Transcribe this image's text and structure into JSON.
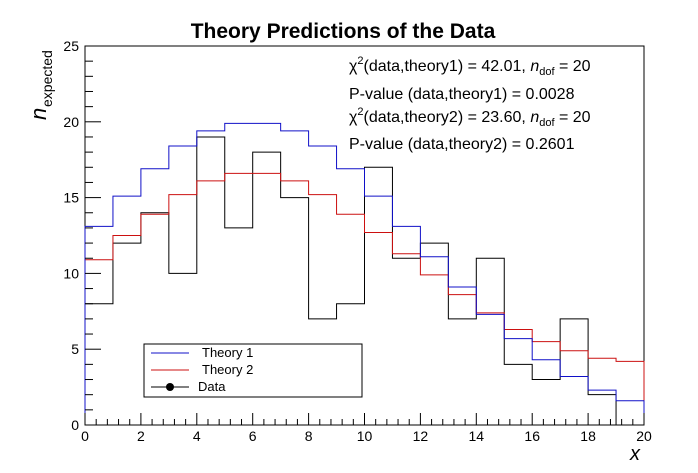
{
  "chart_data": {
    "type": "step-histogram",
    "title": "Theory Predictions of the Data",
    "xlabel": "x",
    "ylabel_main": "n",
    "ylabel_sub": "expected",
    "xlim": [
      0,
      20
    ],
    "ylim": [
      0,
      25
    ],
    "x_ticks": [
      0,
      2,
      4,
      6,
      8,
      10,
      12,
      14,
      16,
      18,
      20
    ],
    "y_ticks": [
      0,
      5,
      10,
      15,
      20,
      25
    ],
    "bin_edges": [
      0,
      1,
      2,
      3,
      4,
      5,
      6,
      7,
      8,
      9,
      10,
      11,
      12,
      13,
      14,
      15,
      16,
      17,
      18,
      19,
      20
    ],
    "series": [
      {
        "name": "Theory 1",
        "color": "#1010c8",
        "values": [
          13.1,
          15.1,
          16.9,
          18.4,
          19.4,
          19.9,
          19.9,
          19.4,
          18.4,
          16.9,
          15.1,
          13.1,
          11.1,
          9.1,
          7.3,
          5.7,
          4.3,
          3.2,
          2.3,
          1.6
        ]
      },
      {
        "name": "Theory 2",
        "color": "#cc1010",
        "values": [
          10.9,
          12.5,
          13.9,
          15.2,
          16.1,
          16.6,
          16.6,
          16.1,
          15.2,
          13.9,
          12.7,
          11.3,
          9.9,
          8.6,
          7.4,
          6.3,
          5.5,
          4.9,
          4.4,
          4.2
        ]
      },
      {
        "name": "Data",
        "color": "#000000",
        "values": [
          8,
          12,
          14,
          10,
          19,
          13,
          18,
          15,
          7,
          8,
          17,
          11,
          12,
          7,
          11,
          4,
          3,
          7,
          2,
          0
        ]
      }
    ],
    "annotations": {
      "line1": {
        "chi2": "χ",
        "sup": "2",
        "text1": "(data,theory1) = 42.01, ",
        "n": "n",
        "sub": "dof",
        "text2": " = 20"
      },
      "line2": "P-value (data,theory1) = 0.0028",
      "line3": {
        "chi2": "χ",
        "sup": "2",
        "text1": "(data,theory2) = 23.60, ",
        "n": "n",
        "sub": "dof",
        "text2": " = 20"
      },
      "line4": "P-value (data,theory2) = 0.2601"
    },
    "legend_position": "bottom-left",
    "grid": false
  }
}
